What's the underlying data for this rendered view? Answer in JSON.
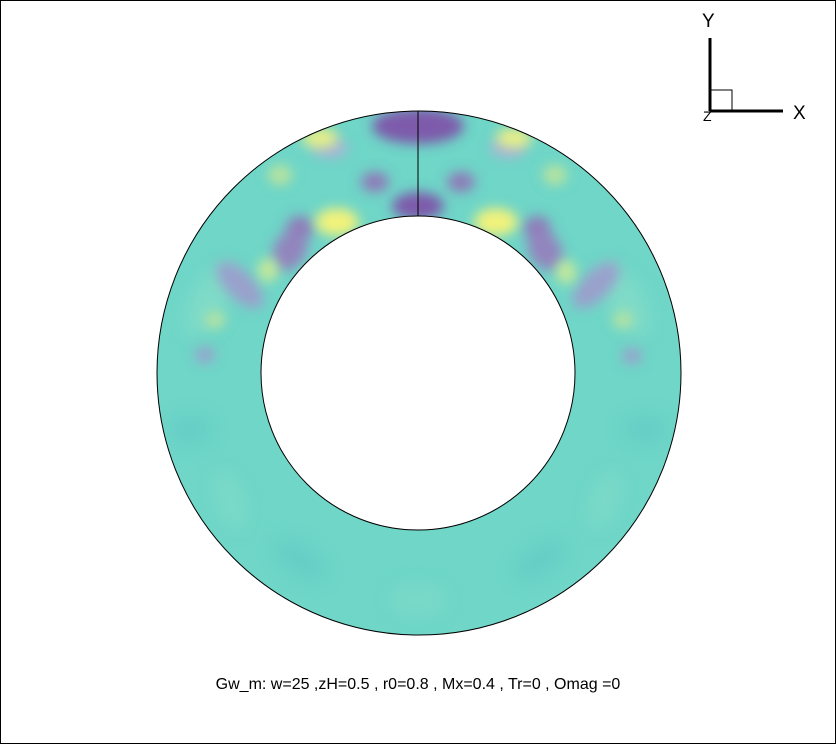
{
  "caption": "Gw_m: w=25 ,zH=0.5 , r0=0.8 , Mx=0.4 , Tr=0 , Omag =0",
  "axes": {
    "x_label": "X",
    "y_label": "Y",
    "z_label": "Z"
  },
  "colors": {
    "base": "#6fd6c8",
    "low": "#7e5aab",
    "mid_low": "#9aa8d0",
    "high": "#f2f27a",
    "mid_high": "#b9e39e",
    "line": "#000000"
  }
}
